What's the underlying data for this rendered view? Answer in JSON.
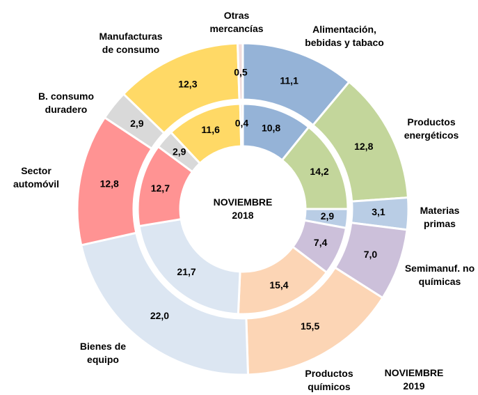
{
  "chart_data": {
    "type": "donut",
    "categories": [
      "Alimentación, bebidas y tabaco",
      "Productos energéticos",
      "Materias primas",
      "Semimanuf. no químicas",
      "Productos químicos",
      "Bienes de equipo",
      "Sector automóvil",
      "B. consumo duradero",
      "Manufacturas de consumo",
      "Otras mercancías"
    ],
    "colors": [
      "#95b3d7",
      "#c3d69b",
      "#b9cde5",
      "#ccc0da",
      "#fcd5b5",
      "#dce6f2",
      "#ff9393",
      "#d9d9d9",
      "#ffd966",
      "#f2dcdb"
    ],
    "series": [
      {
        "name": "NOVIEMBRE 2019",
        "values": [
          11.1,
          12.8,
          3.1,
          7.0,
          15.5,
          22.0,
          12.8,
          2.9,
          12.3,
          0.5
        ],
        "value_labels": [
          "11,1",
          "12,8",
          "3,1",
          "7,0",
          "15,5",
          "22,0",
          "12,8",
          "2,9",
          "12,3",
          "0,5"
        ]
      },
      {
        "name": "NOVIEMBRE 2018",
        "values": [
          10.8,
          14.2,
          2.9,
          7.4,
          15.4,
          21.7,
          12.7,
          2.9,
          11.6,
          0.4
        ],
        "value_labels": [
          "10,8",
          "14,2",
          "2,9",
          "7,4",
          "15,4",
          "21,7",
          "12,7",
          "2,9",
          "11,6",
          "0,4"
        ]
      }
    ]
  }
}
